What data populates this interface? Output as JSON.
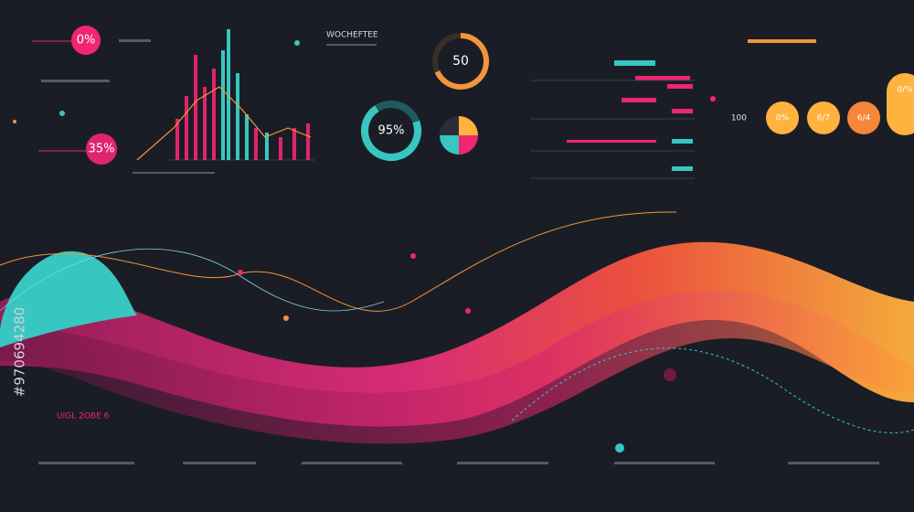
{
  "badges": {
    "top_left": "0%",
    "mid_left": "35%"
  },
  "headline": "WOCHEFTEE",
  "gauge": "50",
  "donut": "95%",
  "orange_row": {
    "label": "100",
    "items": [
      "0%",
      "6/7",
      "6/4",
      "0/%"
    ]
  },
  "footer_title": "UIGL 2OBE 6",
  "watermark": "#970694280"
}
